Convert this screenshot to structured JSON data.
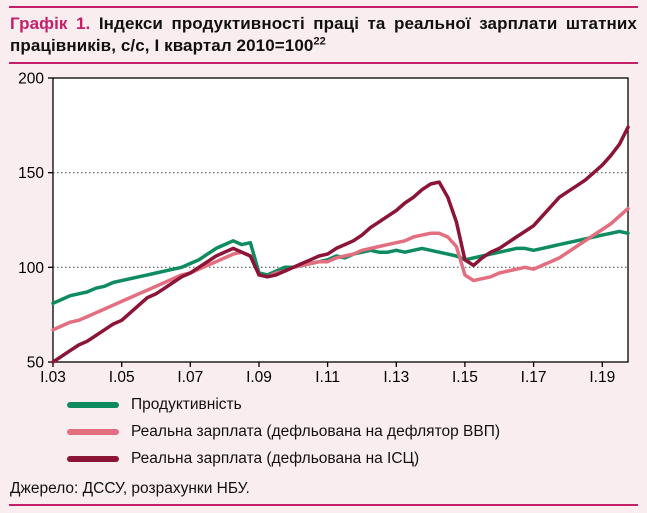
{
  "page": {
    "title_prefix": "Графік 1.",
    "title_rest": " Індекси продуктивності праці та реальної зарплати штатних працівників, с/с, І квартал 2010=100",
    "title_superscript": "22",
    "source": "Джерело: ДССУ, розрахунки НБУ.",
    "accent_color": "#C42069",
    "background_color": "#FAEDEF"
  },
  "chart_data": {
    "type": "line",
    "title": "Індекси продуктивності праці та реальної зарплати штатних працівників, с/с, І квартал 2010=100",
    "x_start_quarter": "I.03",
    "x_frequency": "quarterly",
    "x_tick_labels": [
      "І.03",
      "І.05",
      "І.07",
      "І.09",
      "І.11",
      "І.13",
      "І.15",
      "І.17",
      "І.19"
    ],
    "x_tick_step_quarters": 8,
    "y_ticks": [
      50,
      100,
      150,
      200
    ],
    "ylim": [
      50,
      200
    ],
    "grid_y": [
      100,
      150
    ],
    "legend_position": "bottom",
    "series": [
      {
        "name": "Продуктивність",
        "color": "#0E8C60",
        "values": [
          81,
          83,
          85,
          86,
          87,
          89,
          90,
          92,
          93,
          94,
          95,
          96,
          97,
          98,
          99,
          100,
          102,
          104,
          107,
          110,
          112,
          114,
          112,
          113,
          97,
          96,
          98,
          100,
          100,
          101,
          102,
          103,
          104,
          106,
          105,
          107,
          108,
          109,
          108,
          108,
          109,
          108,
          109,
          110,
          109,
          108,
          107,
          106,
          104,
          105,
          106,
          107,
          108,
          109,
          110,
          110,
          109,
          110,
          111,
          112,
          113,
          114,
          115,
          116,
          117,
          118,
          119,
          118
        ]
      },
      {
        "name": "Реальна зарплата (дефльована на дефлятор ВВП)",
        "color": "#E26E7F",
        "values": [
          67,
          69,
          71,
          72,
          74,
          76,
          78,
          80,
          82,
          84,
          86,
          88,
          90,
          92,
          94,
          96,
          97,
          99,
          101,
          103,
          105,
          107,
          108,
          106,
          96,
          95,
          97,
          98,
          100,
          101,
          102,
          103,
          103,
          105,
          106,
          107,
          109,
          110,
          111,
          112,
          113,
          114,
          116,
          117,
          118,
          118,
          116,
          111,
          96,
          93,
          94,
          95,
          97,
          98,
          99,
          100,
          99,
          101,
          103,
          105,
          108,
          111,
          114,
          117,
          120,
          123,
          127,
          131
        ]
      },
      {
        "name": "Реальна зарплата (дефльована на ІСЦ)",
        "color": "#8C1437",
        "values": [
          50,
          53,
          56,
          59,
          61,
          64,
          67,
          70,
          72,
          76,
          80,
          84,
          86,
          89,
          92,
          95,
          97,
          100,
          103,
          106,
          108,
          110,
          108,
          106,
          96,
          95,
          96,
          98,
          100,
          102,
          104,
          106,
          107,
          110,
          112,
          114,
          117,
          121,
          124,
          127,
          130,
          134,
          137,
          141,
          144,
          145,
          137,
          124,
          104,
          101,
          105,
          108,
          110,
          113,
          116,
          119,
          122,
          127,
          132,
          137,
          140,
          143,
          146,
          150,
          154,
          159,
          165,
          174
        ]
      }
    ]
  }
}
